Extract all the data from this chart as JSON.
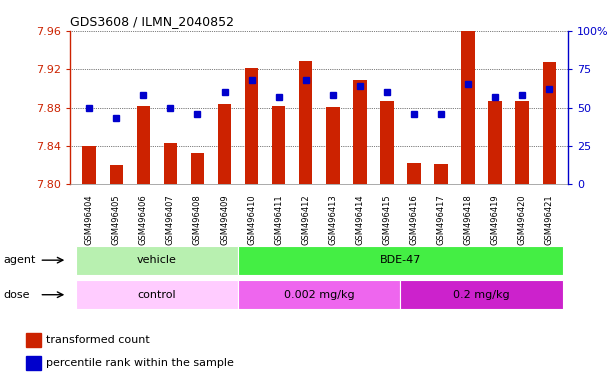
{
  "title": "GDS3608 / ILMN_2040852",
  "samples": [
    "GSM496404",
    "GSM496405",
    "GSM496406",
    "GSM496407",
    "GSM496408",
    "GSM496409",
    "GSM496410",
    "GSM496411",
    "GSM496412",
    "GSM496413",
    "GSM496414",
    "GSM496415",
    "GSM496416",
    "GSM496417",
    "GSM496418",
    "GSM496419",
    "GSM496420",
    "GSM496421"
  ],
  "transformed_count": [
    7.84,
    7.82,
    7.882,
    7.843,
    7.833,
    7.884,
    7.921,
    7.882,
    7.928,
    7.881,
    7.909,
    7.887,
    7.822,
    7.821,
    7.96,
    7.887,
    7.887,
    7.927
  ],
  "percentile_rank": [
    50,
    43,
    58,
    50,
    46,
    60,
    68,
    57,
    68,
    58,
    64,
    60,
    46,
    46,
    65,
    57,
    58,
    62
  ],
  "ylim_left": [
    7.8,
    7.96
  ],
  "ylim_right": [
    0,
    100
  ],
  "yticks_left": [
    7.8,
    7.84,
    7.88,
    7.92,
    7.96
  ],
  "yticks_right": [
    0,
    25,
    50,
    75,
    100
  ],
  "bar_color": "#cc2200",
  "dot_color": "#0000cc",
  "bar_bottom": 7.8,
  "agent_groups": [
    {
      "label": "vehicle",
      "start": 0,
      "end": 6,
      "color": "#b8f0b0"
    },
    {
      "label": "BDE-47",
      "start": 6,
      "end": 18,
      "color": "#44ee44"
    }
  ],
  "dose_groups": [
    {
      "label": "control",
      "start": 0,
      "end": 6,
      "color": "#ffccff"
    },
    {
      "label": "0.002 mg/kg",
      "start": 6,
      "end": 12,
      "color": "#ee66ee"
    },
    {
      "label": "0.2 mg/kg",
      "start": 12,
      "end": 18,
      "color": "#cc22cc"
    }
  ],
  "legend_items": [
    {
      "label": "transformed count",
      "color": "#cc2200"
    },
    {
      "label": "percentile rank within the sample",
      "color": "#0000cc"
    }
  ],
  "agent_label": "agent",
  "dose_label": "dose",
  "plot_bg": "#ffffff",
  "fig_bg": "#ffffff",
  "grid_color": "#000000"
}
